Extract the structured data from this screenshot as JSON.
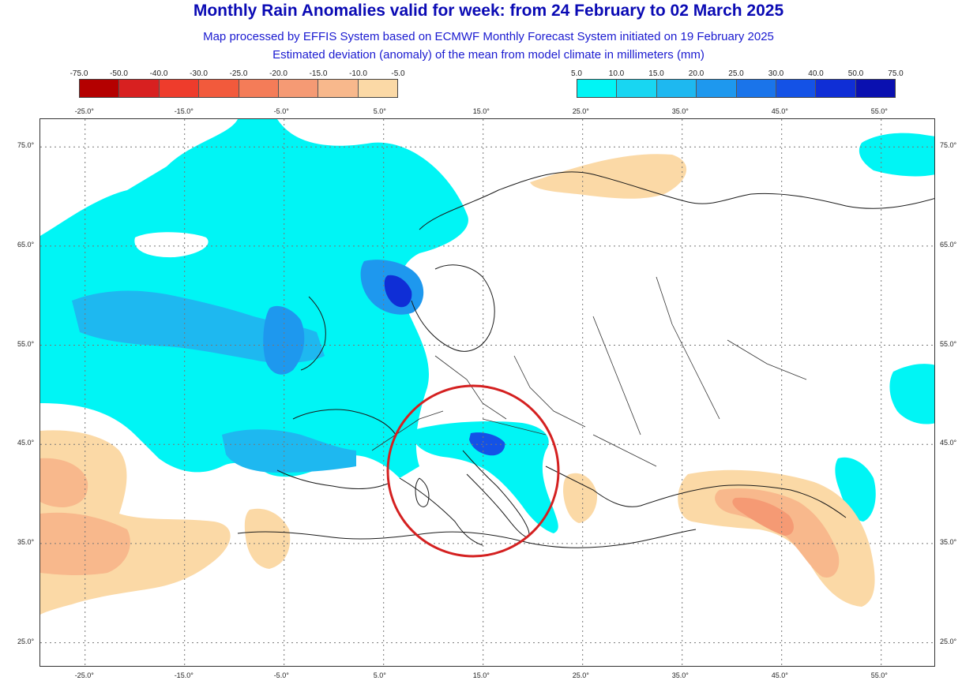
{
  "header": {
    "title": "Monthly Rain Anomalies valid for week: from 24 February to 02 March 2025",
    "subtitle_1": "Map processed by EFFIS System based on ECMWF Monthly Forecast System initiated on 19 February 2025",
    "subtitle_2": "Estimated deviation (anomaly) of the mean from model climate in millimeters (mm)"
  },
  "legend_negative": {
    "ticks": [
      "-75.0",
      "-50.0",
      "-40.0",
      "-30.0",
      "-25.0",
      "-20.0",
      "-15.0",
      "-10.0",
      "-5.0"
    ],
    "colors": [
      "#b40000",
      "#d82020",
      "#ee3c2c",
      "#f25a3c",
      "#f47c58",
      "#f59a74",
      "#f8b88c",
      "#fbd9a6"
    ]
  },
  "legend_positive": {
    "ticks": [
      "5.0",
      "10.0",
      "15.0",
      "20.0",
      "25.0",
      "30.0",
      "40.0",
      "50.0",
      "75.0"
    ],
    "colors": [
      "#00f5f5",
      "#18d6f2",
      "#1eb8f0",
      "#1e98ee",
      "#1a74ea",
      "#1452e6",
      "#0f2ed6",
      "#0a10b0"
    ]
  },
  "axes": {
    "x_ticks_top": [
      "-25.0°",
      "-15.0°",
      "-5.0°",
      "5.0°",
      "15.0°",
      "25.0°",
      "35.0°",
      "45.0°",
      "55.0°"
    ],
    "x_ticks_bottom": [
      "-25.0°",
      "-15.0°",
      "-5.0°",
      "5.0°",
      "15.0°",
      "25.0°",
      "35.0°",
      "45.0°",
      "55.0°"
    ],
    "y_ticks": [
      "75.0°",
      "65.0°",
      "55.0°",
      "45.0°",
      "35.0°",
      "25.0°"
    ]
  },
  "map": {
    "lon_range": [
      -29.5,
      60.5
    ],
    "lat_range": [
      22.5,
      77.8
    ],
    "highlight_circle_color": "#d42020",
    "highlight_region": "Italy"
  }
}
